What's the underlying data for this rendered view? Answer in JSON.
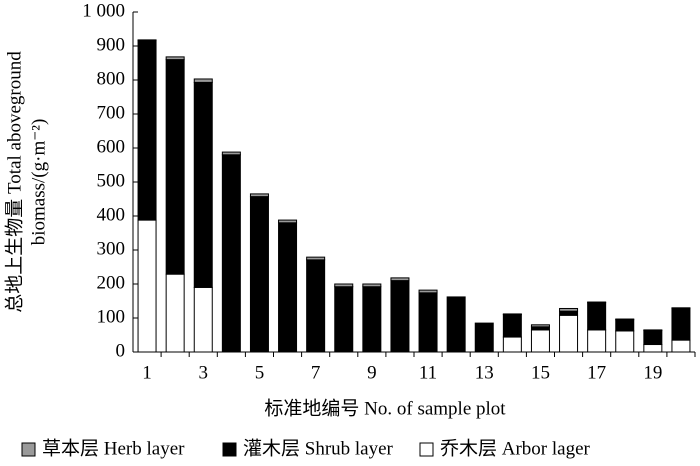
{
  "chart_data": {
    "type": "stacked-bar",
    "y_label": [
      "总地上生物量 Total aboveground",
      "biomass/(g·m⁻²)"
    ],
    "x_label": "标准地编号 No. of sample plot",
    "categories": [
      "1",
      null,
      "3",
      null,
      "5",
      null,
      "7",
      null,
      "9",
      null,
      "11",
      null,
      "13",
      null,
      "15",
      null,
      "17",
      null,
      "19",
      null
    ],
    "series": [
      {
        "name": "草本层 Herb layer",
        "color": "#9a9a9a",
        "values": [
          2,
          8,
          10,
          8,
          8,
          8,
          8,
          8,
          8,
          8,
          8,
          0,
          0,
          2,
          6,
          8,
          2,
          2,
          2,
          2
        ]
      },
      {
        "name": "灌木层 Shrub layer",
        "color": "#000000",
        "values": [
          528,
          631,
          603,
          580,
          457,
          380,
          271,
          192,
          192,
          210,
          174,
          162,
          85,
          66,
          9,
          12,
          80,
          33,
          41,
          93
        ]
      },
      {
        "name": "乔木层 Arbor lager",
        "color": "#ffffff",
        "values": [
          388,
          229,
          190,
          0,
          0,
          0,
          0,
          0,
          0,
          0,
          0,
          0,
          0,
          44,
          65,
          108,
          65,
          62,
          22,
          35
        ]
      }
    ],
    "ylim": [
      0,
      1000
    ],
    "yticks": [
      0,
      100,
      200,
      300,
      400,
      500,
      600,
      700,
      800,
      900,
      {
        "value": 1000,
        "label": "1 000"
      }
    ],
    "legend": "bottom"
  }
}
